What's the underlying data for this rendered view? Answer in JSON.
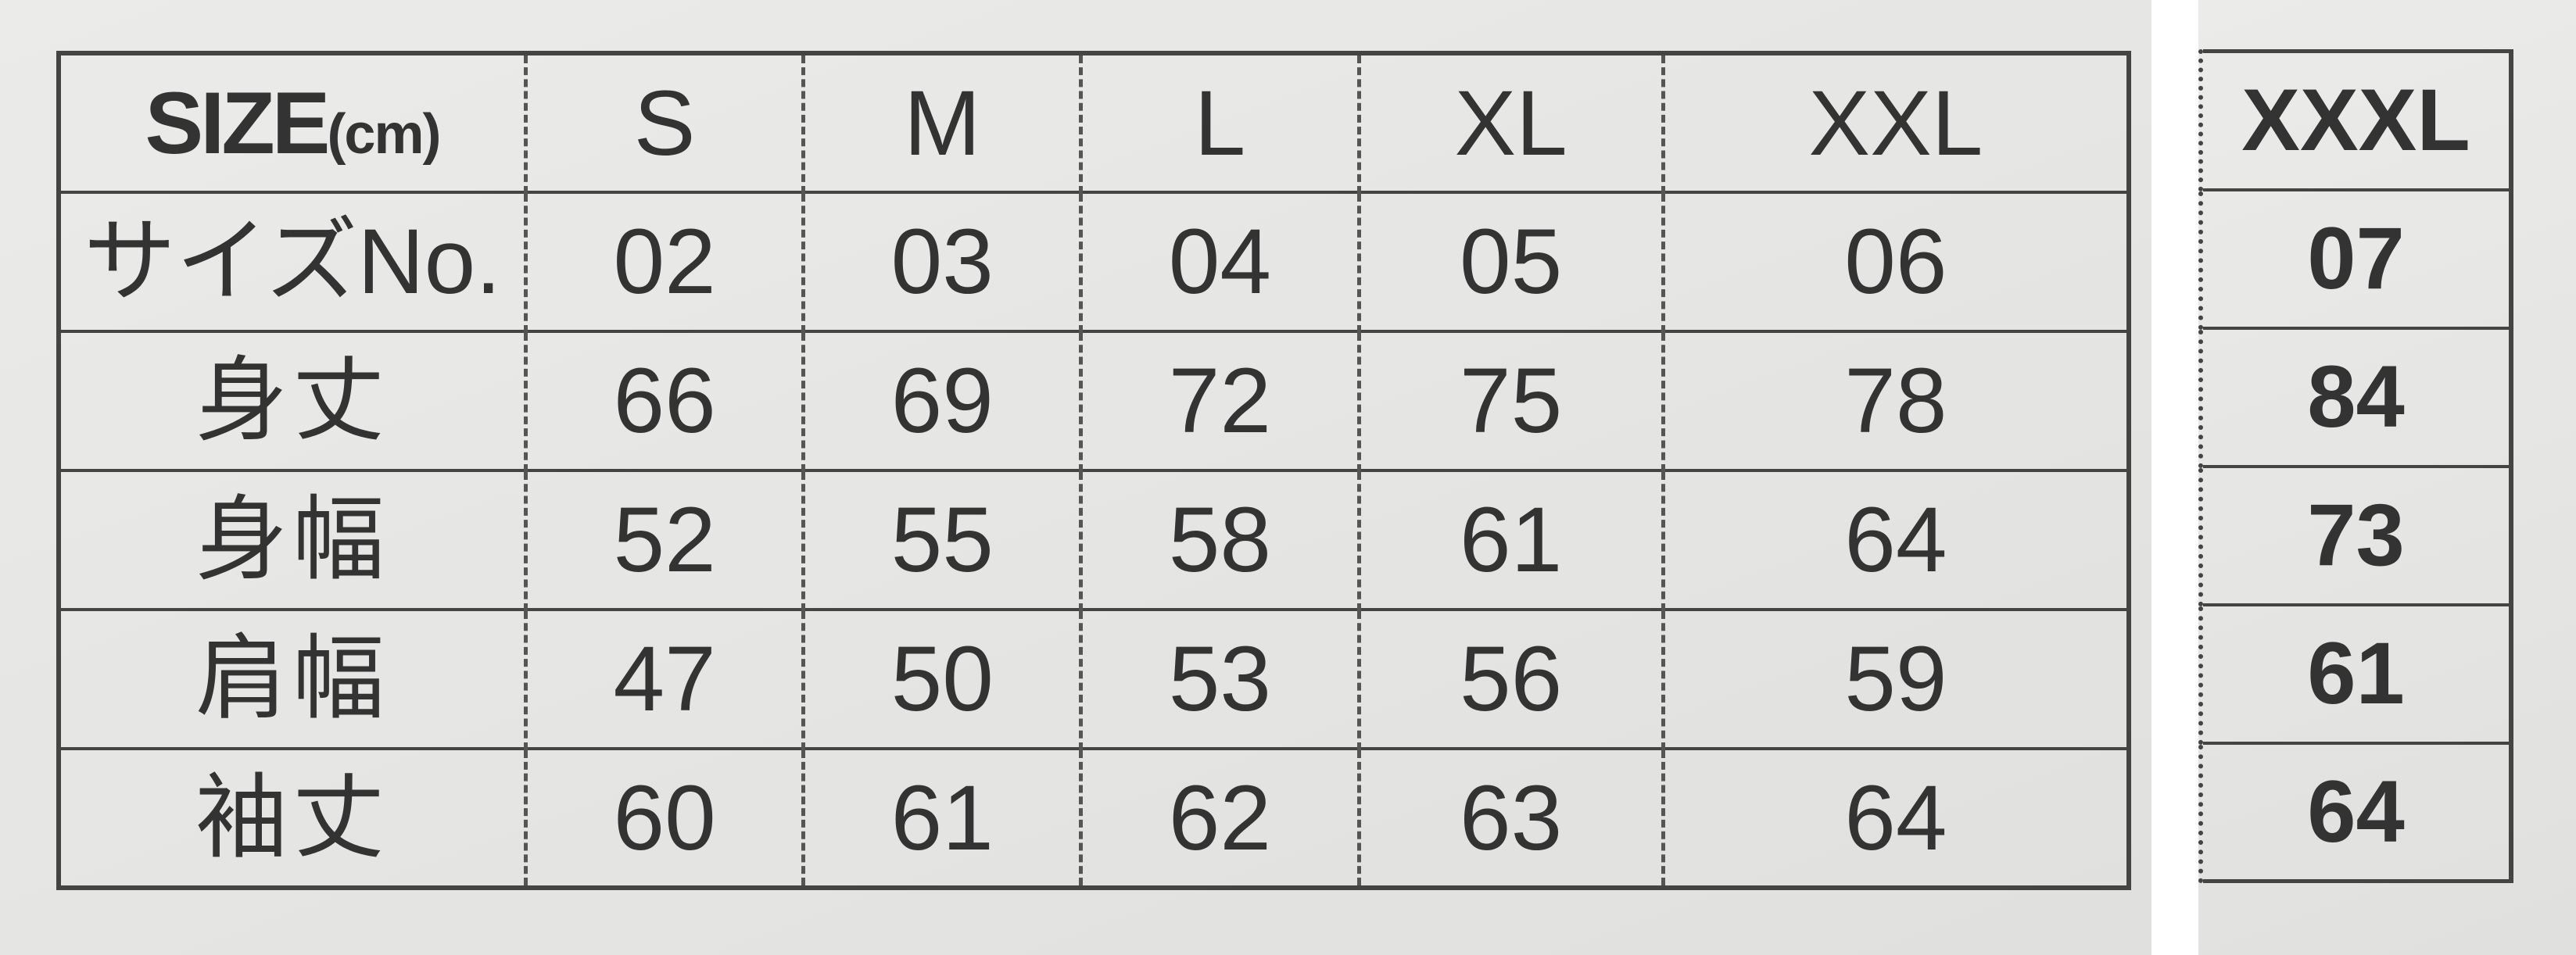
{
  "table": {
    "header_label": "SIZE",
    "header_unit": "(cm)",
    "sizes": [
      "S",
      "M",
      "L",
      "XL",
      "XXL"
    ],
    "rows": [
      {
        "label": "サイズNo.",
        "values": [
          "02",
          "03",
          "04",
          "05",
          "06"
        ]
      },
      {
        "label": "身丈",
        "values": [
          "66",
          "69",
          "72",
          "75",
          "78"
        ]
      },
      {
        "label": "身幅",
        "values": [
          "52",
          "55",
          "58",
          "61",
          "64"
        ]
      },
      {
        "label": "肩幅",
        "values": [
          "47",
          "50",
          "53",
          "56",
          "59"
        ]
      },
      {
        "label": "袖丈",
        "values": [
          "60",
          "61",
          "62",
          "63",
          "64"
        ]
      }
    ]
  },
  "extension": {
    "size": "XXXL",
    "values": [
      "07",
      "84",
      "73",
      "61",
      "64"
    ]
  }
}
